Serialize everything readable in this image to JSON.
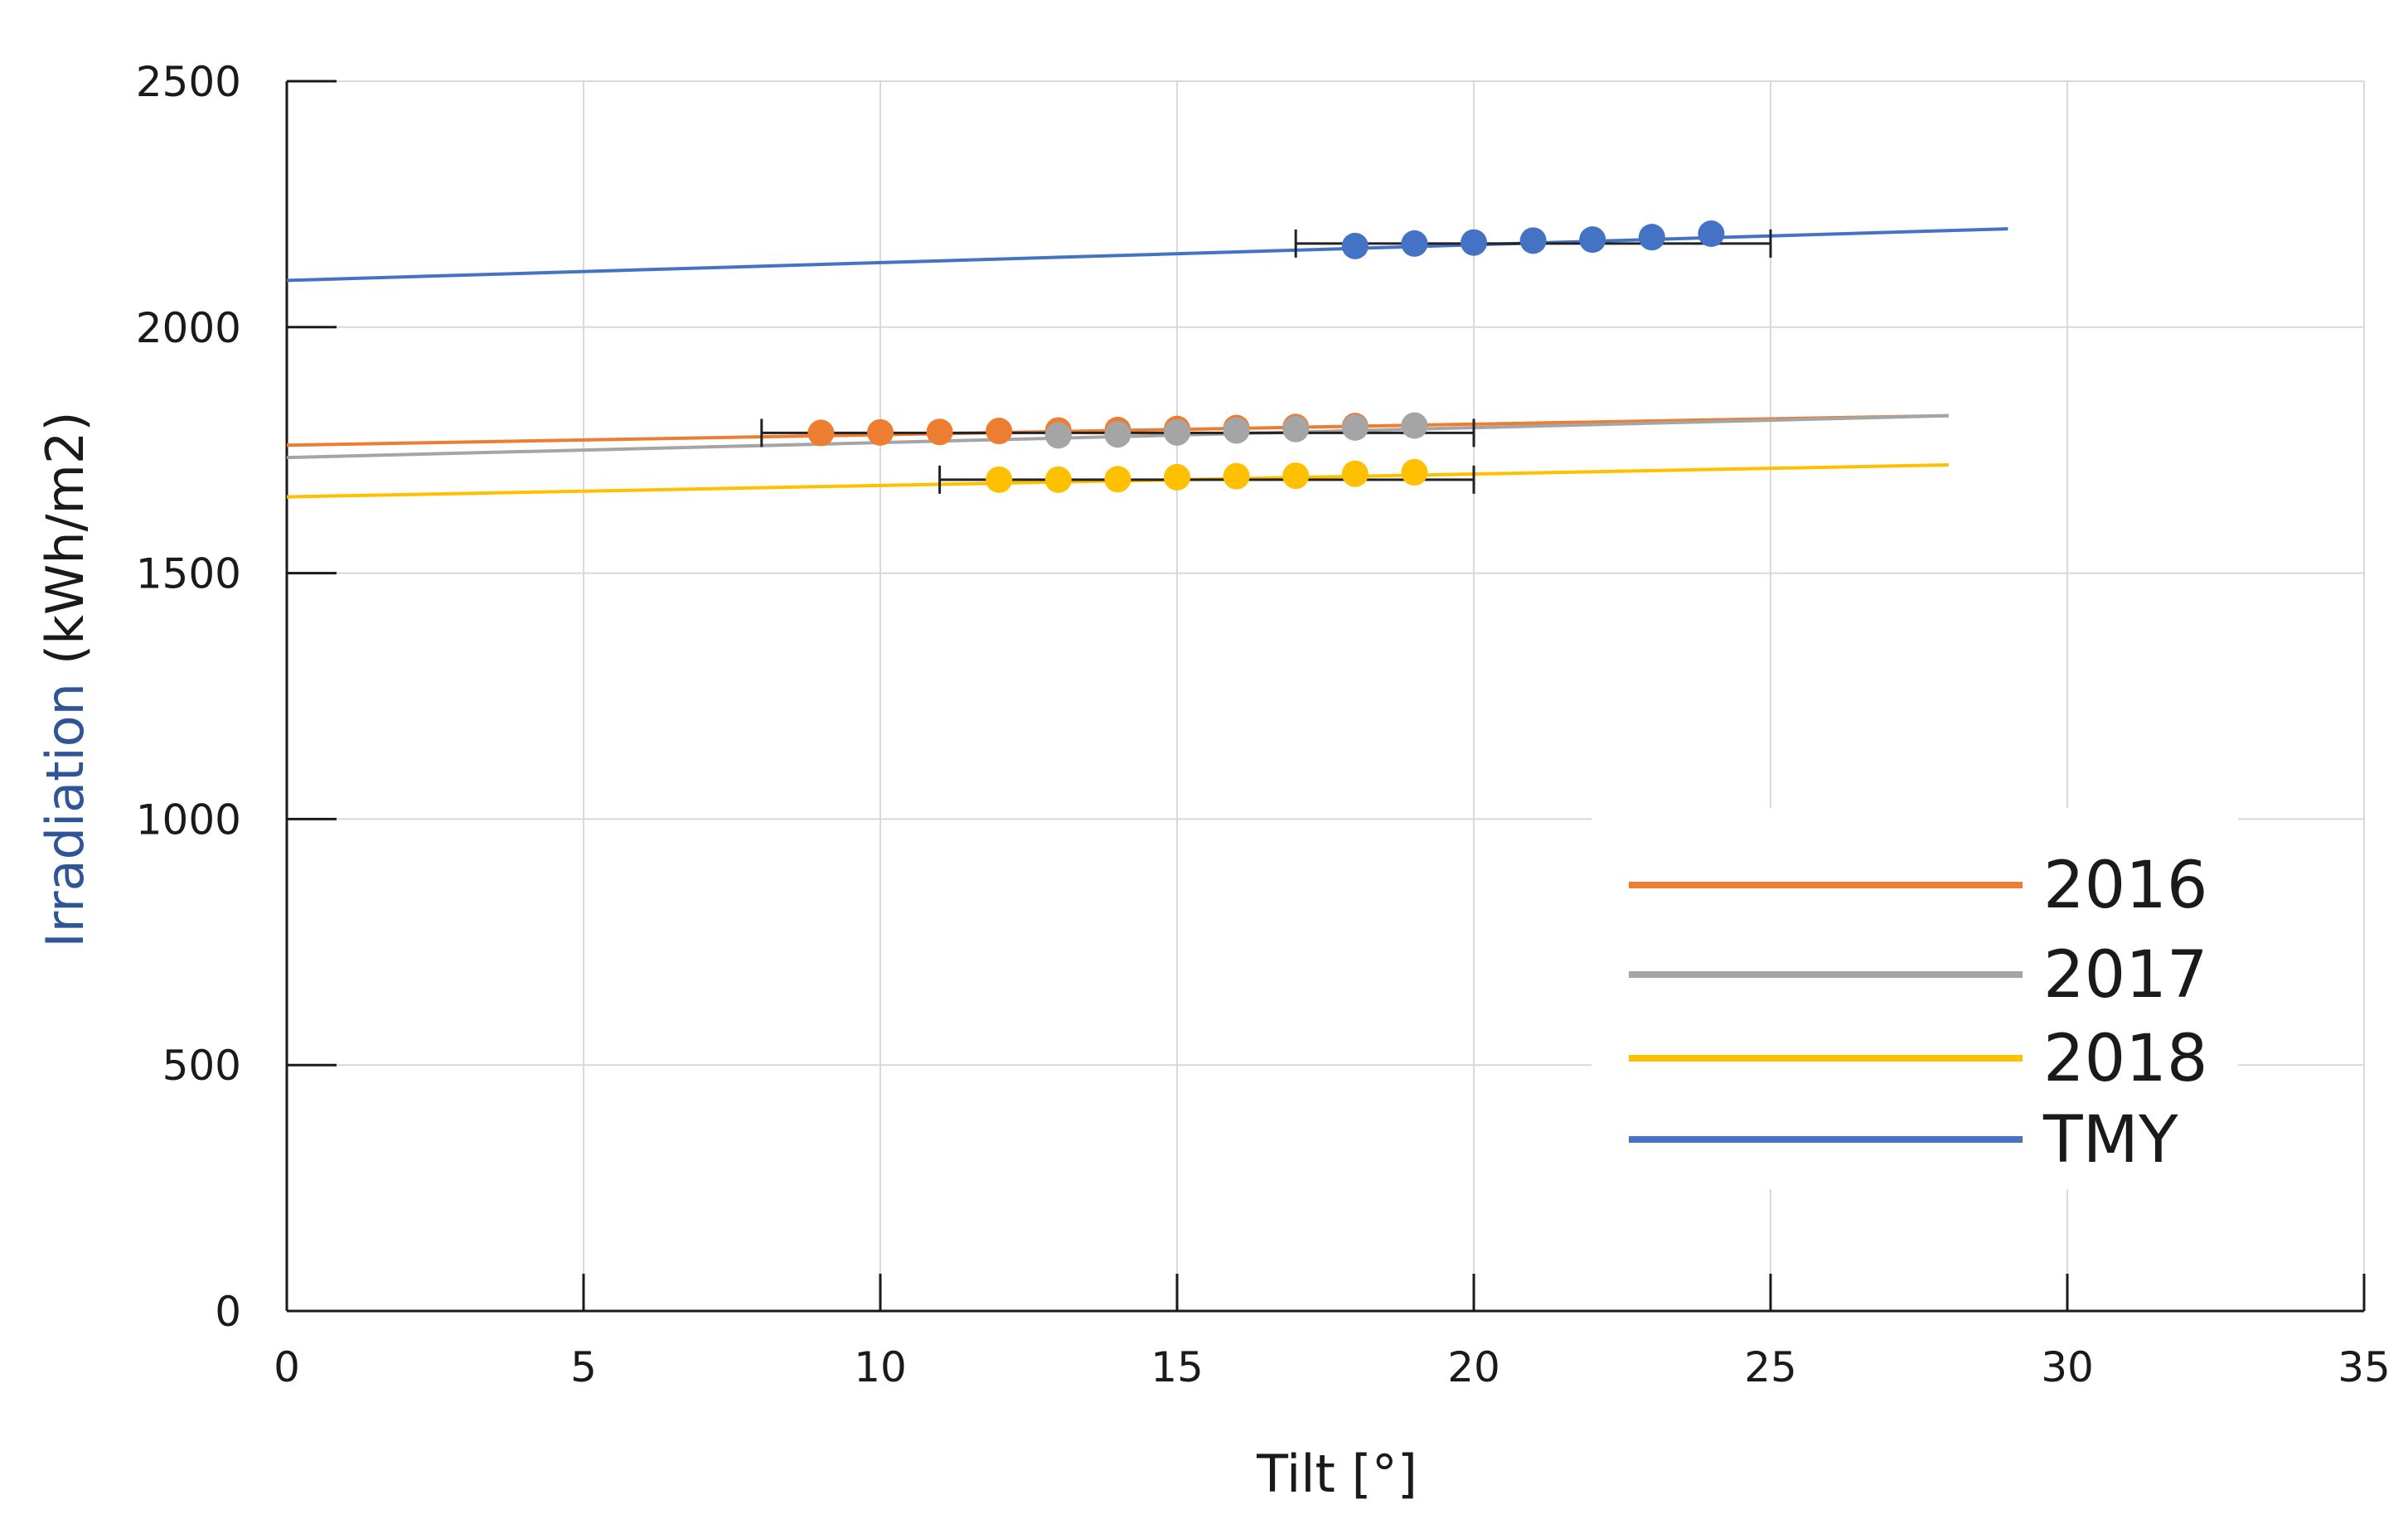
{
  "chart_data": {
    "type": "scatter",
    "title": "",
    "xlabel": "Tilt [°]",
    "ylabel_parts": [
      "Irradiation",
      "(kWh/m2)"
    ],
    "xlim": [
      0,
      35
    ],
    "ylim": [
      0,
      2500
    ],
    "xticks": [
      0,
      5,
      10,
      15,
      20,
      25,
      30,
      35
    ],
    "yticks": [
      0,
      500,
      1000,
      1500,
      2000,
      2500
    ],
    "grid": true,
    "legend_position": "bottom-right",
    "series": [
      {
        "name": "2016",
        "color": "#ED7D31",
        "trend_line": {
          "x": [
            0,
            28
          ],
          "y": [
            1760,
            1820
          ]
        },
        "error_bar": {
          "x": [
            8,
            20
          ],
          "y": 1785
        },
        "points": {
          "x": [
            9,
            10,
            11,
            12,
            13,
            14,
            15,
            16,
            17,
            18
          ],
          "y": [
            1785,
            1786,
            1787,
            1789,
            1790,
            1791,
            1793,
            1795,
            1797,
            1799
          ]
        }
      },
      {
        "name": "2017",
        "color": "#A5A5A5",
        "trend_line": {
          "x": [
            0,
            28
          ],
          "y": [
            1735,
            1820
          ]
        },
        "error_bar": null,
        "points": {
          "x": [
            13,
            14,
            15,
            16,
            17,
            18,
            19
          ],
          "y": [
            1780,
            1782,
            1786,
            1790,
            1793,
            1796,
            1800
          ]
        }
      },
      {
        "name": "2018",
        "color": "#FFC000",
        "trend_line": {
          "x": [
            0,
            28
          ],
          "y": [
            1655,
            1720
          ]
        },
        "error_bar": {
          "x": [
            11,
            20
          ],
          "y": 1690
        },
        "points": {
          "x": [
            12,
            13,
            14,
            15,
            16,
            17,
            18,
            19
          ],
          "y": [
            1690,
            1690,
            1691,
            1695,
            1697,
            1698,
            1702,
            1705
          ]
        }
      },
      {
        "name": "TMY",
        "color": "#4472C4",
        "trend_line": {
          "x": [
            0,
            29
          ],
          "y": [
            2095,
            2200
          ]
        },
        "error_bar": {
          "x": [
            17,
            25
          ],
          "y": 2170
        },
        "points": {
          "x": [
            18,
            19,
            20,
            21,
            22,
            23,
            24
          ],
          "y": [
            2165,
            2170,
            2172,
            2176,
            2178,
            2183,
            2190
          ]
        }
      }
    ]
  }
}
